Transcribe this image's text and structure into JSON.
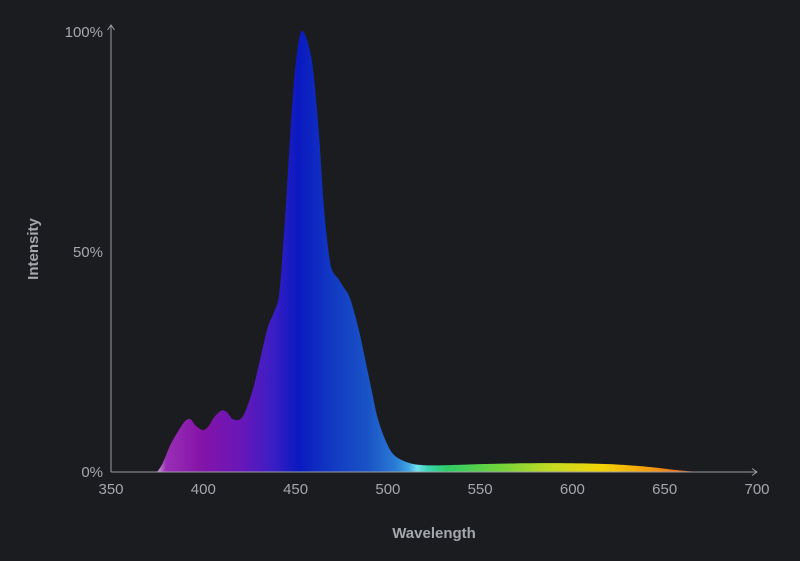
{
  "chart_data": {
    "type": "area",
    "title": "",
    "xlabel": "Wavelength",
    "ylabel": "Intensity",
    "xlim": [
      350,
      700
    ],
    "ylim": [
      0,
      100
    ],
    "x_ticks": [
      350,
      400,
      450,
      500,
      550,
      600,
      650,
      700
    ],
    "x_tick_labels": [
      "350",
      "400",
      "450",
      "500",
      "550",
      "600",
      "650",
      "700"
    ],
    "y_ticks": [
      0,
      50,
      100
    ],
    "y_tick_labels": [
      "0%",
      "50%",
      "100%"
    ],
    "grid": false,
    "legend": "none",
    "fill": "visible-spectrum gradient",
    "series": [
      {
        "x": [
          375,
          378,
          382,
          386,
          390,
          393,
          396,
          400,
          403,
          406,
          410,
          413,
          416,
          420,
          423,
          427,
          431,
          435,
          438,
          441,
          443,
          445,
          447,
          449,
          451,
          453,
          455,
          457,
          459,
          461,
          463,
          465,
          467,
          469,
          471,
          473,
          476,
          479,
          482,
          485,
          488,
          491,
          494,
          497,
          500,
          503,
          507,
          512,
          518,
          525,
          535,
          550,
          575,
          600,
          620,
          635,
          645,
          655,
          662,
          670
        ],
        "y": [
          0,
          2,
          6,
          9,
          11.5,
          12,
          10.5,
          9.5,
          10.5,
          12.5,
          14,
          13.5,
          12,
          12,
          14,
          19,
          26,
          33,
          36,
          40,
          50,
          62,
          76,
          88,
          96,
          100,
          99.5,
          97,
          93,
          85,
          75,
          62,
          53,
          47,
          45,
          44,
          42,
          40,
          36,
          31,
          25,
          19,
          13,
          9,
          6,
          4,
          2.8,
          2,
          1.6,
          1.5,
          1.6,
          1.8,
          2,
          2,
          1.8,
          1.4,
          1,
          0.5,
          0.2,
          0
        ]
      }
    ],
    "colors": {
      "background": "#1b1c20",
      "axis": "#9a9da3",
      "text": "#a4a7ad"
    }
  }
}
